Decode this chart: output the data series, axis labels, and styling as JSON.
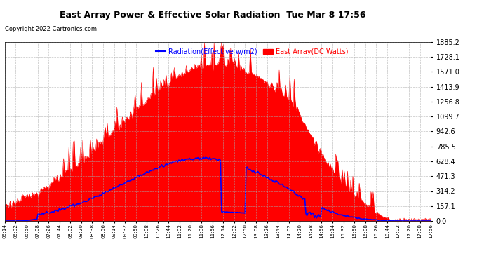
{
  "title": "East Array Power & Effective Solar Radiation  Tue Mar 8 17:56",
  "copyright": "Copyright 2022 Cartronics.com",
  "legend_radiation": "Radiation(Effective w/m2)",
  "legend_east": "East Array(DC Watts)",
  "background_color": "#ffffff",
  "plot_background": "#ffffff",
  "grid_color": "#aaaaaa",
  "ymin": 0.0,
  "ymax": 1885.2,
  "yticks": [
    0.0,
    157.1,
    314.2,
    471.3,
    628.4,
    785.5,
    942.6,
    1099.7,
    1256.8,
    1413.9,
    1571.0,
    1728.1,
    1885.2
  ],
  "east_color": "#ff0000",
  "radiation_color": "#0000ff",
  "title_color": "#000000",
  "copyright_color": "#000000",
  "xtick_labels": [
    "06:14",
    "06:32",
    "06:50",
    "07:08",
    "07:26",
    "07:44",
    "08:02",
    "08:20",
    "08:38",
    "08:56",
    "09:14",
    "09:32",
    "09:50",
    "10:08",
    "10:26",
    "10:44",
    "11:02",
    "11:20",
    "11:38",
    "11:56",
    "12:14",
    "12:32",
    "12:50",
    "13:08",
    "13:26",
    "13:44",
    "14:02",
    "14:20",
    "14:38",
    "14:56",
    "15:14",
    "15:32",
    "15:50",
    "16:08",
    "16:26",
    "16:44",
    "17:02",
    "17:20",
    "17:38",
    "17:56"
  ]
}
